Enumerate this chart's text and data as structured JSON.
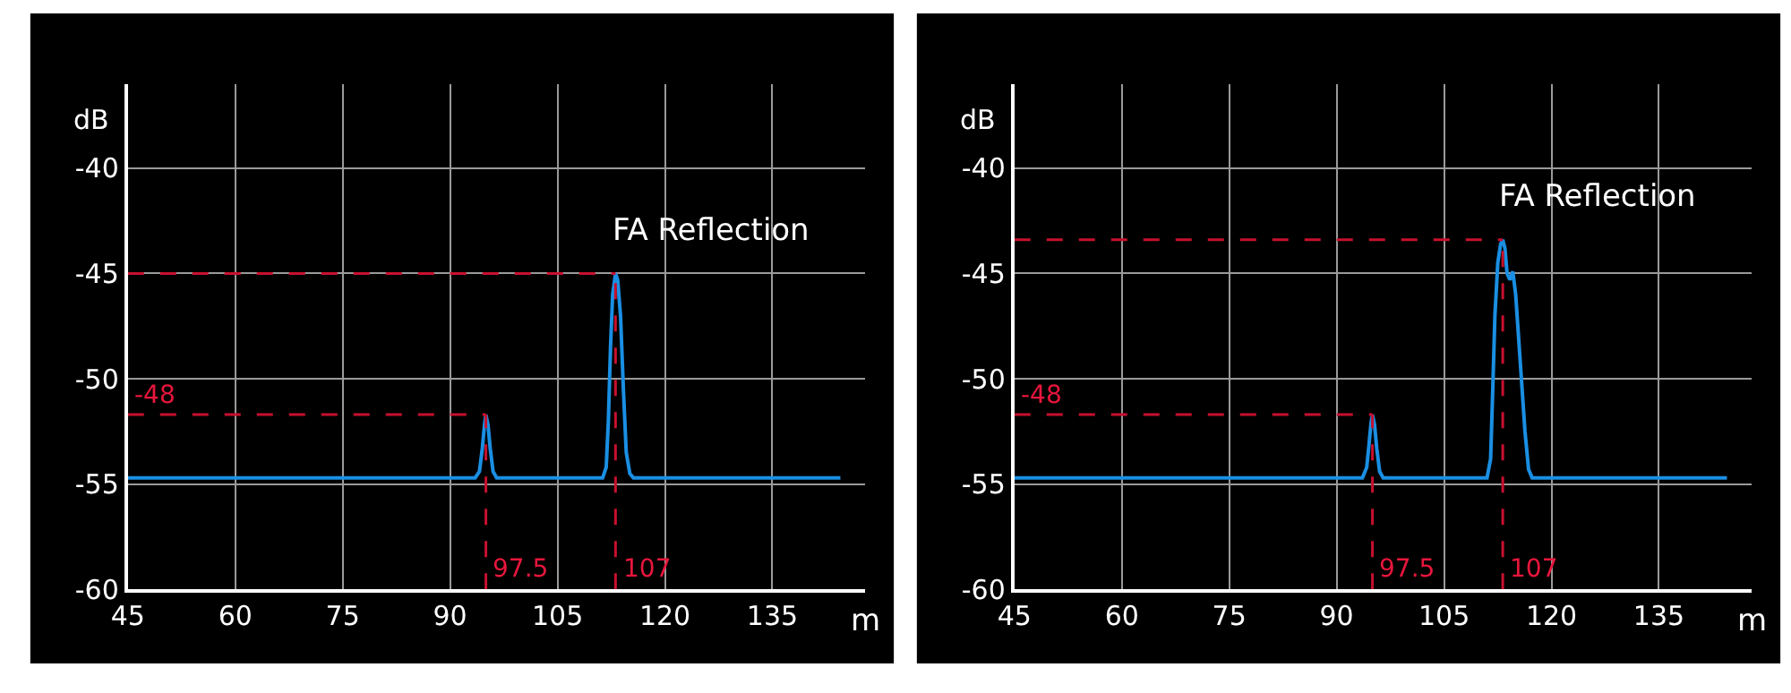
{
  "chart_data": [
    {
      "type": "line",
      "xlabel": "m",
      "ylabel": "dB",
      "xlim": [
        45,
        148
      ],
      "ylim": [
        -60,
        -36
      ],
      "xticks": [
        45,
        60,
        75,
        90,
        105,
        120,
        135
      ],
      "yticks": [
        -60,
        -55,
        -50,
        -45,
        -40
      ],
      "grid": true,
      "marker": "none",
      "line_style": "solid",
      "series": [
        {
          "color": "#1a8fe3",
          "x": [
            45,
            93.5,
            94.1,
            94.5,
            94.8,
            95.0,
            95.3,
            95.6,
            96.0,
            96.5,
            111.3,
            111.8,
            112.1,
            112.4,
            112.7,
            113.1,
            113.4,
            113.8,
            114.2,
            114.6,
            115.1,
            115.6,
            144.5
          ],
          "values": [
            -54.7,
            -54.7,
            -54.4,
            -53.3,
            -52.2,
            -51.7,
            -52.2,
            -53.3,
            -54.4,
            -54.7,
            -54.7,
            -54.2,
            -52,
            -48.5,
            -46,
            -45,
            -45.3,
            -47,
            -50.5,
            -53.5,
            -54.5,
            -54.7,
            -54.7
          ]
        }
      ],
      "ref_lines": [
        {
          "axis": "y",
          "value": -45,
          "color": "#c8102e",
          "line_style": "dashed"
        },
        {
          "axis": "y",
          "value": -51.7,
          "color": "#c8102e",
          "line_style": "dashed"
        },
        {
          "axis": "x",
          "value": 95.0,
          "color": "#c8102e",
          "line_style": "dashed"
        },
        {
          "axis": "x",
          "value": 113.1,
          "color": "#c8102e",
          "line_style": "dashed"
        }
      ],
      "annotations": [
        {
          "text": "FA Reflection",
          "x": 113.1,
          "y": -45
        },
        {
          "text": "-48",
          "x": 45,
          "y": -51.7
        },
        {
          "text": "97.5",
          "x": 95.0,
          "y": -60
        },
        {
          "text": "107",
          "x": 113.1,
          "y": -60
        }
      ]
    },
    {
      "type": "line",
      "xlabel": "m",
      "ylabel": "dB",
      "xlim": [
        45,
        148
      ],
      "ylim": [
        -60,
        -36
      ],
      "xticks": [
        45,
        60,
        75,
        90,
        105,
        120,
        135
      ],
      "yticks": [
        -60,
        -55,
        -50,
        -45,
        -40
      ],
      "grid": true,
      "marker": "none",
      "line_style": "solid",
      "series": [
        {
          "color": "#1a8fe3",
          "x": [
            45,
            93.6,
            94.2,
            94.5,
            94.8,
            95.0,
            95.3,
            95.6,
            96.0,
            96.5,
            111.0,
            111.5,
            111.8,
            112.1,
            112.5,
            112.9,
            113.2,
            113.5,
            113.8,
            114.2,
            114.6,
            115.0,
            115.6,
            116.3,
            116.8,
            117.3,
            144.5
          ],
          "values": [
            -54.7,
            -54.7,
            -54.2,
            -53.2,
            -52.1,
            -51.7,
            -52.2,
            -53.3,
            -54.4,
            -54.7,
            -54.7,
            -53.8,
            -50.5,
            -47,
            -44.5,
            -43.6,
            -43.4,
            -43.8,
            -45,
            -45.3,
            -44.9,
            -46,
            -49,
            -52.5,
            -54.3,
            -54.7,
            -54.7
          ]
        }
      ],
      "ref_lines": [
        {
          "axis": "y",
          "value": -43.4,
          "color": "#c8102e",
          "line_style": "dashed"
        },
        {
          "axis": "y",
          "value": -51.7,
          "color": "#c8102e",
          "line_style": "dashed"
        },
        {
          "axis": "x",
          "value": 95.0,
          "color": "#c8102e",
          "line_style": "dashed"
        },
        {
          "axis": "x",
          "value": 113.2,
          "color": "#c8102e",
          "line_style": "dashed"
        }
      ],
      "annotations": [
        {
          "text": "FA Reflection",
          "x": 113.2,
          "y": -43.4
        },
        {
          "text": "-48",
          "x": 45,
          "y": -51.7
        },
        {
          "text": "97.5",
          "x": 95.0,
          "y": -60
        },
        {
          "text": "107",
          "x": 113.2,
          "y": -60
        }
      ]
    }
  ]
}
